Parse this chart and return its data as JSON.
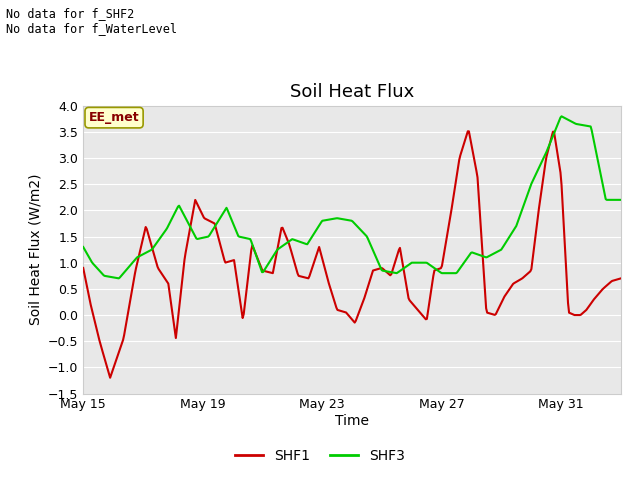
{
  "title": "Soil Heat Flux",
  "xlabel": "Time",
  "ylabel": "Soil Heat Flux (W/m2)",
  "ylim": [
    -1.5,
    4.0
  ],
  "yticks": [
    -1.5,
    -1.0,
    -0.5,
    0.0,
    0.5,
    1.0,
    1.5,
    2.0,
    2.5,
    3.0,
    3.5,
    4.0
  ],
  "xtick_labels": [
    "May 15",
    "May 19",
    "May 23",
    "May 27",
    "May 31"
  ],
  "annotation_text": "No data for f_SHF2\nNo data for f_WaterLevel",
  "box_label": "EE_met",
  "background_color": "#ffffff",
  "plot_bg_color": "#e8e8e8",
  "grid_color": "#ffffff",
  "shf1_color": "#cc0000",
  "shf3_color": "#00cc00",
  "shf1_label": "SHF1",
  "shf3_label": "SHF3",
  "title_fontsize": 13,
  "axis_label_fontsize": 10,
  "tick_fontsize": 9,
  "shf1_ctrl_x": [
    0,
    0.3,
    0.6,
    1.0,
    1.5,
    2.0,
    2.5,
    3.0,
    3.5,
    3.8,
    4.0,
    4.3,
    4.7,
    5.0,
    5.3,
    5.6,
    6.0,
    6.3,
    6.7,
    7.0,
    7.3,
    7.6,
    8.0,
    8.4,
    8.8,
    9.0,
    9.4,
    9.8,
    10.2,
    10.6,
    11.0,
    11.4,
    11.8,
    12.2,
    12.6,
    13.0,
    13.4,
    13.8,
    14.2,
    14.6,
    15.0,
    15.3,
    15.6,
    15.9,
    16.2,
    16.5,
    16.8,
    17.1,
    17.5,
    18.0
  ],
  "shf1_ctrl_y": [
    0.9,
    0.3,
    -0.3,
    -1.2,
    -0.45,
    0.85,
    1.7,
    1.0,
    0.6,
    -0.45,
    1.1,
    2.2,
    1.85,
    1.75,
    1.0,
    1.0,
    -0.1,
    1.3,
    0.85,
    0.85,
    1.7,
    1.35,
    0.8,
    0.7,
    1.3,
    0.65,
    0.1,
    0.05,
    -0.15,
    0.3,
    0.85,
    0.9,
    2.0,
    3.0,
    3.55,
    2.65,
    0.05,
    0.0,
    0.35,
    0.7,
    0.85,
    1.95,
    3.0,
    3.55,
    2.65,
    0.05,
    0.0,
    0.35,
    0.5,
    0.7
  ],
  "shf3_ctrl_x": [
    0,
    0.3,
    0.7,
    1.2,
    1.8,
    2.3,
    2.8,
    3.2,
    3.8,
    4.2,
    4.8,
    5.2,
    5.6,
    6.0,
    6.5,
    7.0,
    7.5,
    8.0,
    8.5,
    9.0,
    9.5,
    10.0,
    10.5,
    11.0,
    11.5,
    12.0,
    12.5,
    13.0,
    13.5,
    14.0,
    14.5,
    15.0,
    15.5,
    16.0,
    16.5,
    17.0,
    17.5,
    18.0
  ],
  "shf3_ctrl_y": [
    1.3,
    1.0,
    0.75,
    0.7,
    1.1,
    1.25,
    1.65,
    2.1,
    1.45,
    1.5,
    2.05,
    1.5,
    1.45,
    0.8,
    1.25,
    1.45,
    1.35,
    1.8,
    1.85,
    1.8,
    1.5,
    0.85,
    0.8,
    1.0,
    1.0,
    0.8,
    0.8,
    1.2,
    1.1,
    1.25,
    1.7,
    2.5,
    3.1,
    3.8,
    3.65,
    3.6,
    2.2,
    2.2
  ]
}
